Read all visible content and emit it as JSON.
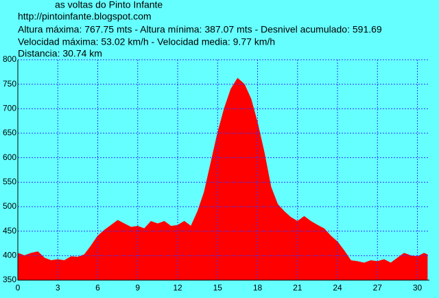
{
  "chart_data": {
    "type": "area",
    "title": "as voltas do Pinto Infante",
    "subtitle": "http://pintoinfante.blogspot.com",
    "annotations": [
      "Altura máxima: 767.75 mts - Altura mínima: 387.07 mts - Desnivel acumulado: 591.69",
      "Velocidad máxima: 53.02 km/h - Velocidad media: 9.77 km/h",
      "Distancia: 30.74 km"
    ],
    "x": [
      0,
      0.5,
      1,
      1.5,
      2,
      2.5,
      3,
      3.5,
      4,
      4.5,
      5,
      5.5,
      6,
      6.5,
      7,
      7.5,
      8,
      8.5,
      9,
      9.5,
      10,
      10.5,
      11,
      11.5,
      12,
      12.5,
      13,
      13.5,
      14,
      14.5,
      15,
      15.5,
      16,
      16.5,
      17,
      17.5,
      18,
      18.5,
      19,
      19.5,
      20,
      20.5,
      21,
      21.5,
      22,
      22.5,
      23,
      23.5,
      24,
      24.5,
      25,
      25.5,
      26,
      26.5,
      27,
      27.5,
      28,
      28.5,
      29,
      29.5,
      30,
      30.5,
      30.74
    ],
    "values": [
      405,
      400,
      405,
      408,
      395,
      390,
      392,
      390,
      398,
      397,
      402,
      420,
      440,
      452,
      462,
      472,
      465,
      458,
      460,
      455,
      470,
      465,
      470,
      460,
      462,
      470,
      460,
      490,
      530,
      590,
      650,
      700,
      740,
      762,
      750,
      720,
      670,
      610,
      540,
      505,
      490,
      478,
      470,
      480,
      470,
      462,
      455,
      440,
      428,
      410,
      390,
      388,
      385,
      390,
      388,
      392,
      385,
      395,
      405,
      400,
      398,
      405,
      402
    ],
    "color": "#ff0000",
    "xlim": [
      0,
      30.9
    ],
    "ylim": [
      350,
      800
    ],
    "xticks": [
      0,
      3,
      6,
      9,
      12,
      15,
      18,
      21,
      24,
      27,
      30
    ],
    "yticks": [
      350,
      400,
      450,
      500,
      550,
      600,
      650,
      700,
      750,
      800
    ],
    "grid": true
  }
}
